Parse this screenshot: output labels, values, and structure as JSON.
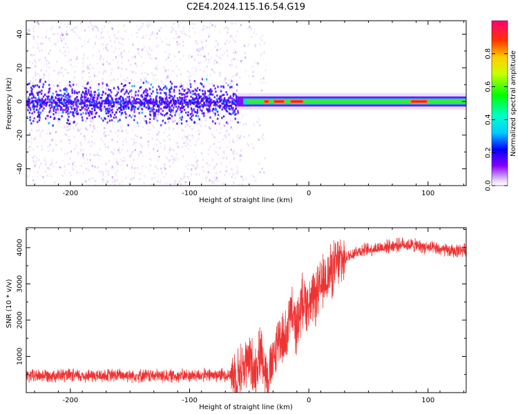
{
  "title": "C2E4.2024.115.16.54.G19",
  "chart_data": [
    {
      "type": "heatmap",
      "xlabel": "Height of straight line (km)",
      "ylabel": "Frequency (Hz)",
      "xlim": [
        -237,
        132
      ],
      "ylim": [
        -50,
        48
      ],
      "xticks": [
        -200,
        -100,
        0,
        100
      ],
      "yticks": [
        -40,
        -20,
        0,
        20,
        40
      ],
      "colorbar": {
        "label": "Normalized spectral amplitude",
        "range": [
          0,
          1
        ],
        "ticks": [
          "0.0",
          "0.2",
          "0.4",
          "0.6",
          "0.8"
        ],
        "tick_values": [
          0.0,
          0.2,
          0.4,
          0.6,
          0.8
        ]
      },
      "description_values": {
        "noise_region_x": [
          -237,
          -60
        ],
        "signal_line_frequency": 0,
        "peak_amplitude_x": [
          -30,
          -5
        ],
        "secondary_peak_x": 95
      }
    },
    {
      "type": "line",
      "xlabel": "Height of straight line (km)",
      "ylabel": "SNR (10 * v/v)",
      "xlim": [
        -237,
        132
      ],
      "ylim": [
        0,
        4550
      ],
      "xticks": [
        -200,
        -100,
        0,
        100
      ],
      "yticks": [
        1000,
        2000,
        3000,
        4000
      ],
      "line_color": "#ee3333",
      "series": [
        {
          "x": [
            -237,
            -220,
            -200,
            -180,
            -160,
            -140,
            -120,
            -100,
            -80,
            -60,
            -55,
            -50,
            -45,
            -40,
            -35,
            -30,
            -25,
            -20,
            -15,
            -10,
            -5,
            0,
            5,
            10,
            15,
            20,
            25,
            30,
            40,
            50,
            60,
            70,
            80,
            90,
            100,
            110,
            120,
            132
          ],
          "y": [
            450,
            480,
            470,
            460,
            480,
            470,
            460,
            470,
            480,
            500,
            700,
            900,
            600,
            1200,
            400,
            800,
            1600,
            1400,
            2200,
            1800,
            2600,
            2400,
            2600,
            2900,
            3200,
            3400,
            3600,
            3700,
            3900,
            3950,
            4000,
            4050,
            4100,
            4050,
            4000,
            3950,
            3900,
            3950
          ]
        }
      ]
    }
  ]
}
